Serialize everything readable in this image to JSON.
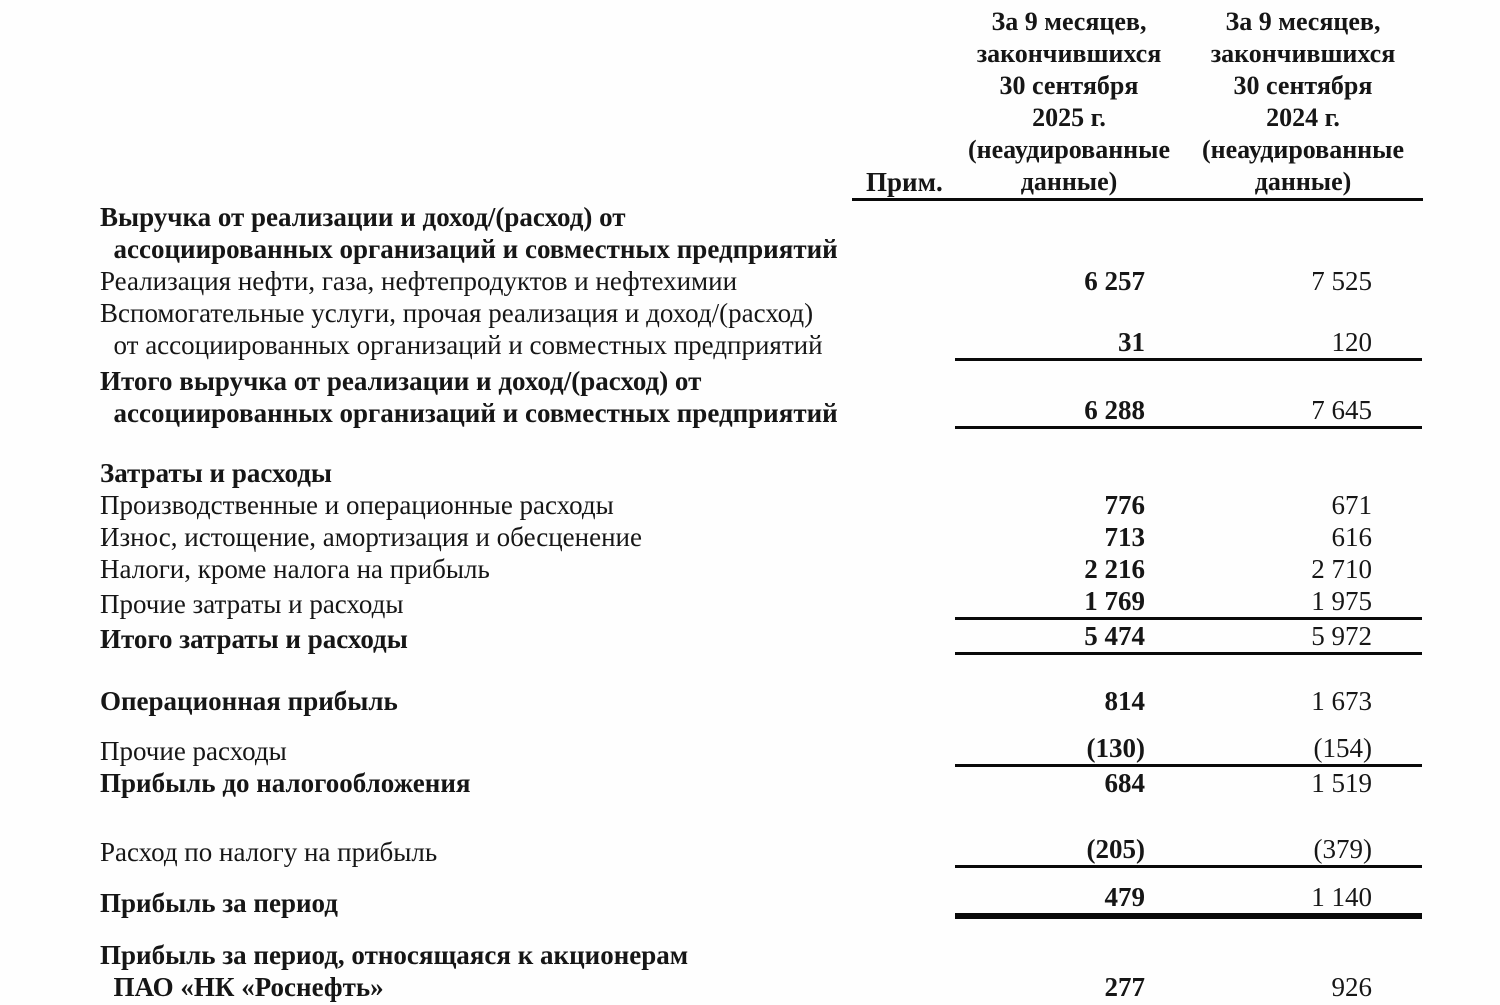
{
  "document": {
    "type": "consolidated income statement (Russian, unaudited)",
    "header": {
      "note_col": "Прим.",
      "col_2025": "За 9 месяцев,\nзакончившихся\n30 сентября\n2025 г.\n(неаудированные\nданные)",
      "col_2024": "За 9 месяцев,\nзакончившихся\n30 сентября\n2024 г.\n(неаудированные\nданные)"
    },
    "rules_color": "#0a0a0a",
    "rows": [
      {
        "label": "Выручка от реализации и доход/(расход) от\n  ассоциированных организаций и совместных предприятий",
        "bold": true,
        "v2025": "",
        "v2024": "",
        "rule": "none",
        "gap": 0
      },
      {
        "label": "Реализация нефти, газа, нефтепродуктов и нефтехимии",
        "bold": false,
        "v2025": "6 257",
        "v2024": "7 525",
        "rule": "none",
        "gap": 0
      },
      {
        "label": "Вспомогательные услуги, прочая реализация и доход/(расход)\n  от ассоциированных организаций и совместных предприятий",
        "bold": false,
        "v2025": "31",
        "v2024": "120",
        "rule": "single",
        "gap": 0
      },
      {
        "label": "Итого выручка от реализации и доход/(расход) от\n  ассоциированных организаций и совместных предприятий",
        "bold": true,
        "v2025": "6 288",
        "v2024": "7 645",
        "rule": "single",
        "gap": 4
      },
      {
        "label": "Затраты и расходы",
        "bold": true,
        "v2025": "",
        "v2024": "",
        "rule": "none",
        "gap": 28
      },
      {
        "label": "Производственные и операционные расходы",
        "bold": false,
        "v2025": "776",
        "v2024": "671",
        "rule": "none",
        "gap": 0
      },
      {
        "label": "Износ, истощение, амортизация и обесценение",
        "bold": false,
        "v2025": "713",
        "v2024": "616",
        "rule": "none",
        "gap": 0
      },
      {
        "label": "Налоги, кроме налога на прибыль",
        "bold": false,
        "v2025": "2 216",
        "v2024": "2 710",
        "rule": "none",
        "gap": 0
      },
      {
        "label": "Прочие затраты и расходы",
        "bold": false,
        "v2025": "1 769",
        "v2024": "1 975",
        "rule": "single",
        "gap": 0
      },
      {
        "label": "Итого затраты и расходы",
        "bold": true,
        "v2025": "5 474",
        "v2024": "5 972",
        "rule": "single",
        "gap": 0
      },
      {
        "label": "Операционная прибыль",
        "bold": true,
        "v2025": "814",
        "v2024": "1 673",
        "rule": "none",
        "gap": 30
      },
      {
        "label": "Прочие расходы",
        "bold": false,
        "v2025": "(130)",
        "v2024": "(154)",
        "rule": "single",
        "gap": 15
      },
      {
        "label": "Прибыль до налогообложения",
        "bold": true,
        "v2025": "684",
        "v2024": "1 519",
        "rule": "none",
        "gap": 0
      },
      {
        "label": "Расход по налогу на прибыль",
        "bold": false,
        "v2025": "(205)",
        "v2024": "(379)",
        "rule": "single",
        "gap": 34
      },
      {
        "label": "Прибыль за период",
        "bold": true,
        "v2025": "479",
        "v2024": "1 140",
        "rule": "thick",
        "gap": 13
      },
      {
        "label": "Прибыль за период, относящаяся к акционерам\n  ПАО «НК «Роснефть»",
        "bold": true,
        "v2025": "277",
        "v2024": "926",
        "rule": "none",
        "gap": 20
      }
    ]
  }
}
